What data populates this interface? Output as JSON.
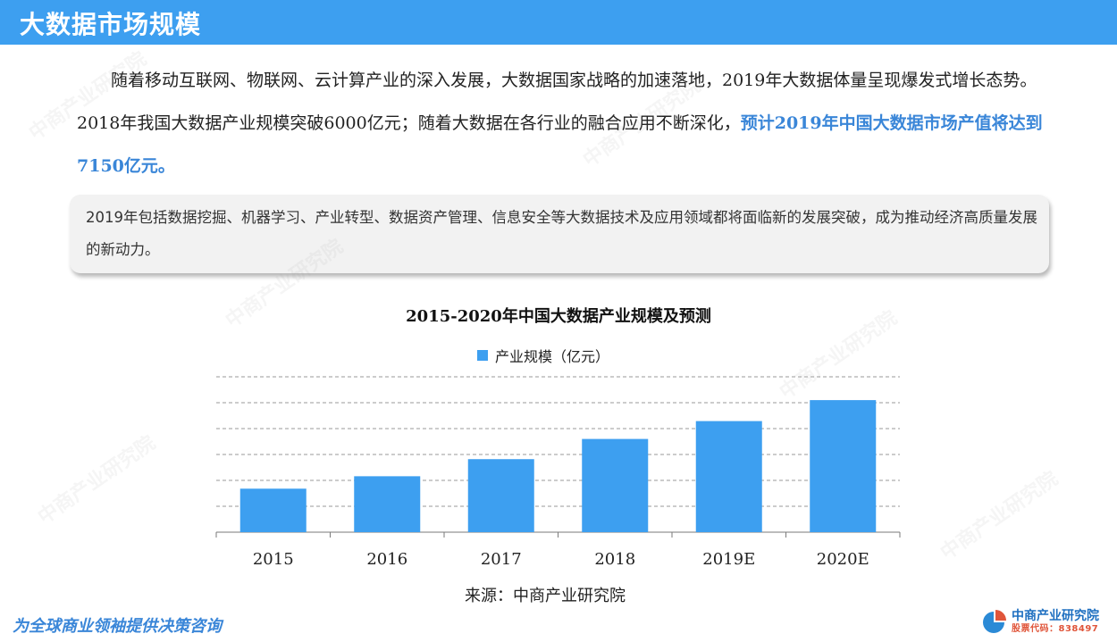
{
  "header": {
    "title": "大数据市场规模"
  },
  "intro": {
    "text_before": "随着移动互联网、物联网、云计算产业的深入发展，大数据国家战略的加速落地，2019年大数据体量呈现爆发式增长态势。2018年我国大数据产业规模突破6000亿元；随着大数据在各行业的融合应用不断深化，",
    "text_highlight": "预计2019年中国大数据市场产值将达到7150亿元。"
  },
  "note": {
    "text": "2019年包括数据挖掘、机器学习、产业转型、数据资产管理、信息安全等大数据技术及应用领域都将面临新的发展突破，成为推动经济高质量发展的新动力。"
  },
  "chart_data": {
    "type": "bar",
    "title": "2015-2020年中国大数据产业规模及预测",
    "categories": [
      "2015",
      "2016",
      "2017",
      "2018",
      "2019E",
      "2020E"
    ],
    "series": [
      {
        "name": "产业规模（亿元）",
        "values": [
          2800,
          3600,
          4700,
          6000,
          7150,
          8500
        ],
        "color": "#3d9ff0"
      }
    ],
    "ylim": [
      0,
      10000
    ],
    "grid": true,
    "legend": "top"
  },
  "source": {
    "text": "来源：中商产业研究院"
  },
  "footer": {
    "slogan": "为全球商业领袖提供决策咨询",
    "logo_name": "中商产业研究院",
    "logo_code": "股票代码：838497"
  },
  "watermark": {
    "text": "中商产业研究院"
  }
}
